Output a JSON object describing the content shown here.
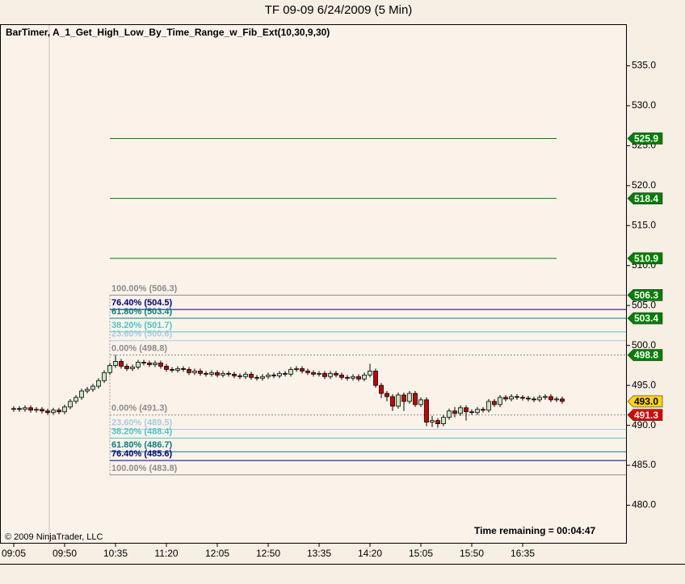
{
  "chart_data": {
    "type": "candlestick",
    "title": "TF 09-09  6/24/2009 (5 Min)",
    "indicator_label": "BarTimer, A_1_Get_High_Low_By_Time_Range_w_Fib_Ext(10,30,9,30)",
    "copyright": "© 2009 NinjaTrader, LLC",
    "time_remaining": "Time remaining = 00:04:47",
    "x": [
      "09:05",
      "09:10",
      "09:15",
      "09:20",
      "09:25",
      "09:30",
      "09:35",
      "09:40",
      "09:45",
      "09:50",
      "09:55",
      "10:00",
      "10:05",
      "10:10",
      "10:15",
      "10:20",
      "10:25",
      "10:30",
      "10:35",
      "10:40",
      "10:45",
      "10:50",
      "10:55",
      "11:00",
      "11:05",
      "11:10",
      "11:15",
      "11:20",
      "11:25",
      "11:30",
      "11:35",
      "11:40",
      "11:45",
      "11:50",
      "11:55",
      "12:00",
      "12:05",
      "12:10",
      "12:15",
      "12:20",
      "12:25",
      "12:30",
      "12:35",
      "12:40",
      "12:45",
      "12:50",
      "12:55",
      "13:00",
      "13:05",
      "13:10",
      "13:15",
      "13:20",
      "13:25",
      "13:30",
      "13:35",
      "13:40",
      "13:45",
      "13:50",
      "13:55",
      "14:00",
      "14:05",
      "14:10",
      "14:15",
      "14:20",
      "14:25",
      "14:30",
      "14:35",
      "14:40",
      "14:45",
      "14:50",
      "14:55",
      "15:00",
      "15:05",
      "15:10",
      "15:15",
      "15:20",
      "15:25",
      "15:30",
      "15:35",
      "15:40",
      "15:45",
      "15:50",
      "15:55",
      "16:00",
      "16:05",
      "16:10",
      "16:15",
      "16:20",
      "16:25",
      "16:30",
      "16:35",
      "16:40",
      "16:45",
      "16:50",
      "16:55",
      "17:00",
      "17:05",
      "17:10"
    ],
    "open": [
      492.0,
      492.1,
      492.0,
      492.2,
      491.9,
      492.0,
      491.8,
      491.6,
      491.9,
      491.7,
      492.3,
      493.0,
      493.5,
      494.3,
      494.5,
      494.9,
      495.6,
      496.6,
      497.5,
      498.0,
      497.4,
      497.1,
      497.3,
      497.9,
      497.8,
      497.6,
      497.8,
      497.4,
      497.0,
      496.9,
      497.1,
      497.0,
      496.6,
      496.8,
      496.5,
      496.4,
      496.6,
      496.3,
      496.5,
      496.4,
      496.2,
      496.1,
      496.4,
      496.0,
      495.9,
      496.1,
      496.3,
      496.2,
      496.5,
      496.4,
      497.0,
      497.1,
      496.8,
      496.6,
      496.4,
      496.5,
      496.1,
      496.5,
      496.3,
      496.0,
      495.9,
      496.1,
      495.8,
      496.3,
      496.8,
      495.0,
      494.0,
      493.6,
      492.4,
      493.8,
      493.0,
      494.0,
      492.6,
      493.2,
      490.4,
      490.6,
      490.2,
      491.0,
      491.8,
      491.5,
      492.2,
      491.7,
      491.6,
      492.0,
      491.9,
      493.0,
      492.6,
      493.5,
      493.3,
      493.6,
      493.5,
      493.4,
      493.3,
      493.2,
      493.5,
      493.6,
      493.2,
      493.3
    ],
    "high": [
      492.4,
      492.4,
      492.5,
      492.5,
      492.3,
      492.3,
      492.1,
      492.2,
      492.2,
      492.6,
      493.3,
      493.8,
      494.6,
      494.8,
      495.2,
      495.9,
      496.9,
      497.8,
      498.8,
      498.3,
      497.7,
      497.6,
      498.2,
      498.2,
      498.1,
      498.1,
      498.1,
      497.7,
      497.3,
      497.4,
      497.4,
      497.3,
      497.1,
      497.1,
      496.8,
      496.9,
      496.9,
      496.8,
      496.8,
      496.7,
      496.5,
      496.7,
      496.7,
      496.3,
      496.4,
      496.6,
      496.6,
      496.8,
      496.8,
      497.3,
      497.4,
      497.4,
      497.1,
      496.9,
      496.8,
      496.8,
      496.8,
      496.8,
      496.6,
      496.3,
      496.4,
      496.4,
      496.6,
      497.7,
      497.1,
      495.3,
      494.3,
      493.9,
      494.1,
      494.1,
      494.3,
      494.3,
      493.5,
      493.5,
      491.2,
      490.9,
      491.3,
      492.1,
      492.3,
      492.5,
      492.5,
      492.0,
      492.3,
      492.3,
      493.3,
      493.3,
      493.8,
      493.8,
      493.9,
      493.9,
      493.8,
      493.7,
      493.6,
      493.8,
      493.9,
      493.9,
      493.6,
      493.6
    ],
    "low": [
      491.7,
      491.7,
      491.7,
      491.6,
      491.6,
      491.5,
      491.3,
      491.3,
      491.4,
      491.4,
      492.0,
      492.7,
      493.2,
      494.0,
      494.2,
      494.6,
      495.3,
      496.3,
      497.2,
      497.1,
      496.8,
      496.8,
      497.0,
      497.5,
      497.3,
      497.3,
      497.1,
      496.7,
      496.6,
      496.6,
      496.7,
      496.3,
      496.3,
      496.2,
      496.1,
      496.1,
      496.0,
      496.0,
      496.1,
      495.9,
      495.8,
      495.8,
      495.7,
      495.6,
      495.6,
      495.8,
      495.9,
      495.9,
      496.1,
      496.1,
      496.7,
      496.5,
      496.3,
      496.1,
      496.1,
      495.8,
      495.8,
      496.0,
      495.7,
      495.6,
      495.6,
      495.5,
      495.5,
      496.0,
      494.7,
      493.4,
      493.0,
      491.8,
      492.1,
      491.8,
      492.7,
      492.3,
      492.3,
      489.9,
      489.8,
      489.7,
      489.9,
      490.7,
      491.0,
      491.2,
      490.6,
      491.3,
      491.3,
      491.6,
      491.6,
      492.3,
      492.3,
      493.0,
      493.0,
      493.2,
      493.1,
      493.0,
      492.9,
      492.9,
      493.2,
      492.9,
      492.9,
      492.7
    ],
    "close": [
      492.1,
      492.0,
      492.2,
      491.9,
      492.0,
      491.8,
      491.6,
      491.9,
      491.7,
      492.3,
      493.0,
      493.5,
      494.3,
      494.5,
      494.9,
      495.6,
      496.6,
      497.5,
      498.0,
      497.4,
      497.1,
      497.3,
      497.9,
      497.8,
      497.6,
      497.8,
      497.4,
      497.0,
      496.9,
      497.1,
      497.0,
      496.6,
      496.8,
      496.5,
      496.4,
      496.6,
      496.3,
      496.5,
      496.4,
      496.2,
      496.1,
      496.4,
      496.0,
      495.9,
      496.1,
      496.3,
      496.2,
      496.5,
      496.4,
      497.0,
      497.1,
      496.8,
      496.6,
      496.4,
      496.5,
      496.1,
      496.5,
      496.3,
      496.0,
      495.9,
      496.1,
      495.8,
      496.3,
      496.8,
      495.0,
      494.0,
      493.6,
      492.4,
      493.8,
      493.0,
      494.0,
      492.6,
      493.2,
      490.4,
      490.6,
      490.2,
      491.0,
      491.8,
      491.5,
      492.2,
      491.7,
      491.6,
      492.0,
      491.9,
      493.0,
      492.6,
      493.5,
      493.3,
      493.6,
      493.5,
      493.4,
      493.3,
      493.2,
      493.5,
      493.6,
      493.2,
      493.3,
      493.0
    ],
    "up_color": "#c6e8c0",
    "down_color": "#cc0000",
    "ylim": [
      475.3,
      540.1
    ],
    "yticks": [
      {
        "value": 480,
        "label": "480.0"
      },
      {
        "value": 485,
        "label": "485.0"
      },
      {
        "value": 490,
        "label": "490.0"
      },
      {
        "value": 495,
        "label": "495.0"
      },
      {
        "value": 500,
        "label": "500.0"
      },
      {
        "value": 505,
        "label": "505.0"
      },
      {
        "value": 510,
        "label": "510.0"
      },
      {
        "value": 515,
        "label": "515.0"
      },
      {
        "value": 520,
        "label": "520.0"
      },
      {
        "value": 525,
        "label": "525.0"
      },
      {
        "value": 530,
        "label": "530.0"
      },
      {
        "value": 535,
        "label": "535.0"
      }
    ],
    "xticks": [
      "09:05",
      "09:50",
      "10:35",
      "11:20",
      "12:05",
      "12:50",
      "13:35",
      "14:20",
      "15:05",
      "15:50",
      "16:35"
    ],
    "fib_from": "10:30",
    "extensions": [
      {
        "value": 510.9,
        "color": "#008000",
        "to": "17:05"
      },
      {
        "value": 518.4,
        "color": "#008000",
        "to": "17:05"
      },
      {
        "value": 525.9,
        "color": "#008000",
        "to": "17:05"
      }
    ],
    "levels": [
      {
        "label": "100.00% (506.3)",
        "value": 506.3,
        "color": "#8c8c8c",
        "style": "solid"
      },
      {
        "label": "76.40% (504.5)",
        "value": 504.5,
        "color": "#000080",
        "style": "solid"
      },
      {
        "label": "61.80% (503.4)",
        "value": 503.4,
        "color": "#008080",
        "style": "solid"
      },
      {
        "label": "38.20% (501.7)",
        "value": 501.7,
        "color": "#48c8c8",
        "style": "solid"
      },
      {
        "label": "23.60% (500.6)",
        "value": 500.6,
        "color": "#a8cce4",
        "style": "solid"
      },
      {
        "label": "0.00% (498.8)",
        "value": 498.8,
        "color": "#8c8c8c",
        "style": "dotted"
      },
      {
        "label": "0.00% (491.3)",
        "value": 491.3,
        "color": "#8c8c8c",
        "style": "dotted"
      },
      {
        "label": "23.60% (489.5)",
        "value": 489.5,
        "color": "#a8cce4",
        "style": "solid"
      },
      {
        "label": "38.20% (488.4)",
        "value": 488.4,
        "color": "#48c8c8",
        "style": "solid"
      },
      {
        "label": "61.80% (486.7)",
        "value": 486.7,
        "color": "#008080",
        "style": "solid"
      },
      {
        "label": "76.40% (485.6)",
        "value": 485.6,
        "color": "#000080",
        "style": "solid"
      },
      {
        "label": "100.00% (483.8)",
        "value": 483.8,
        "color": "#8c8c8c",
        "style": "solid"
      }
    ],
    "price_markers": [
      {
        "value": 525.9,
        "color": "#008000",
        "text_color": "#ffffff"
      },
      {
        "value": 518.4,
        "color": "#008000",
        "text_color": "#ffffff"
      },
      {
        "value": 510.9,
        "color": "#008000",
        "text_color": "#ffffff"
      },
      {
        "value": 506.3,
        "color": "#008000",
        "text_color": "#ffffff"
      },
      {
        "value": 503.4,
        "color": "#008000",
        "text_color": "#ffffff"
      },
      {
        "value": 498.8,
        "color": "#008000",
        "text_color": "#ffffff"
      },
      {
        "value": {
          "value": 493,
          "label": "493.0"
        },
        "color": "#ffd700",
        "text_color": "#000000"
      },
      {
        "value": 491.3,
        "color": "#dd0000",
        "text_color": "#ffffff"
      }
    ]
  }
}
